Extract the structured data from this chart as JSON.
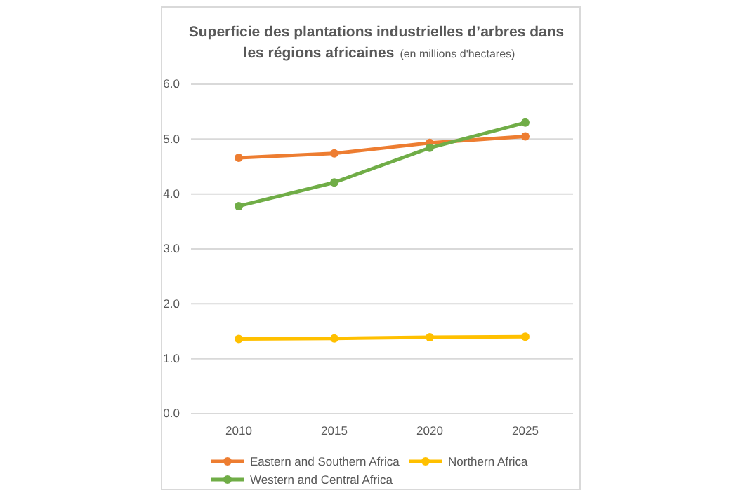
{
  "chart_data": {
    "type": "line",
    "title": "Superficie des plantations industrielles d’arbres dans les régions africaines",
    "subtitle": "(en millions d'hectares)",
    "categories": [
      "2010",
      "2015",
      "2020",
      "2025"
    ],
    "series": [
      {
        "name": "Eastern and Southern Africa",
        "color": "#ed7d31",
        "values": [
          4.66,
          4.74,
          4.93,
          5.05
        ]
      },
      {
        "name": "Northern Africa",
        "color": "#ffc000",
        "values": [
          1.36,
          1.37,
          1.39,
          1.4
        ]
      },
      {
        "name": "Western and Central Africa",
        "color": "#70ad47",
        "values": [
          3.78,
          4.21,
          4.84,
          5.3
        ]
      }
    ],
    "ylim": [
      0,
      6
    ],
    "yticks": [
      {
        "value": 0,
        "label": "0.0"
      },
      {
        "value": 1,
        "label": "1.0"
      },
      {
        "value": 2,
        "label": "2.0"
      },
      {
        "value": 3,
        "label": "3.0"
      },
      {
        "value": 4,
        "label": "4.0"
      },
      {
        "value": 5,
        "label": "5.0"
      },
      {
        "value": 6,
        "label": "6.0"
      }
    ],
    "grid": "y",
    "legend": "bottom",
    "marker": "circle",
    "line_style": "solid"
  }
}
